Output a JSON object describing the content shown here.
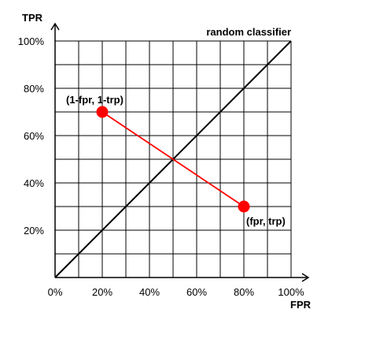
{
  "chart_data": {
    "type": "line",
    "xlabel": "FPR",
    "ylabel": "TPR",
    "xlim": [
      0,
      100
    ],
    "ylim": [
      0,
      100
    ],
    "grid": true,
    "x_ticks": [
      "0%",
      "20%",
      "40%",
      "60%",
      "80%",
      "100%"
    ],
    "y_ticks": [
      "20%",
      "40%",
      "60%",
      "80%",
      "100%"
    ],
    "series": [
      {
        "name": "random classifier",
        "x": [
          0,
          100
        ],
        "y": [
          0,
          100
        ],
        "color": "#000000"
      },
      {
        "x": [
          20,
          80
        ],
        "y": [
          70,
          30
        ],
        "color": "#ff0000"
      }
    ],
    "points": [
      {
        "label": "(1-fpr, 1-trp)",
        "x": 20,
        "y": 70,
        "color": "#ff0000"
      },
      {
        "label": "(fpr, trp)",
        "x": 80,
        "y": 30,
        "color": "#ff0000"
      }
    ]
  }
}
